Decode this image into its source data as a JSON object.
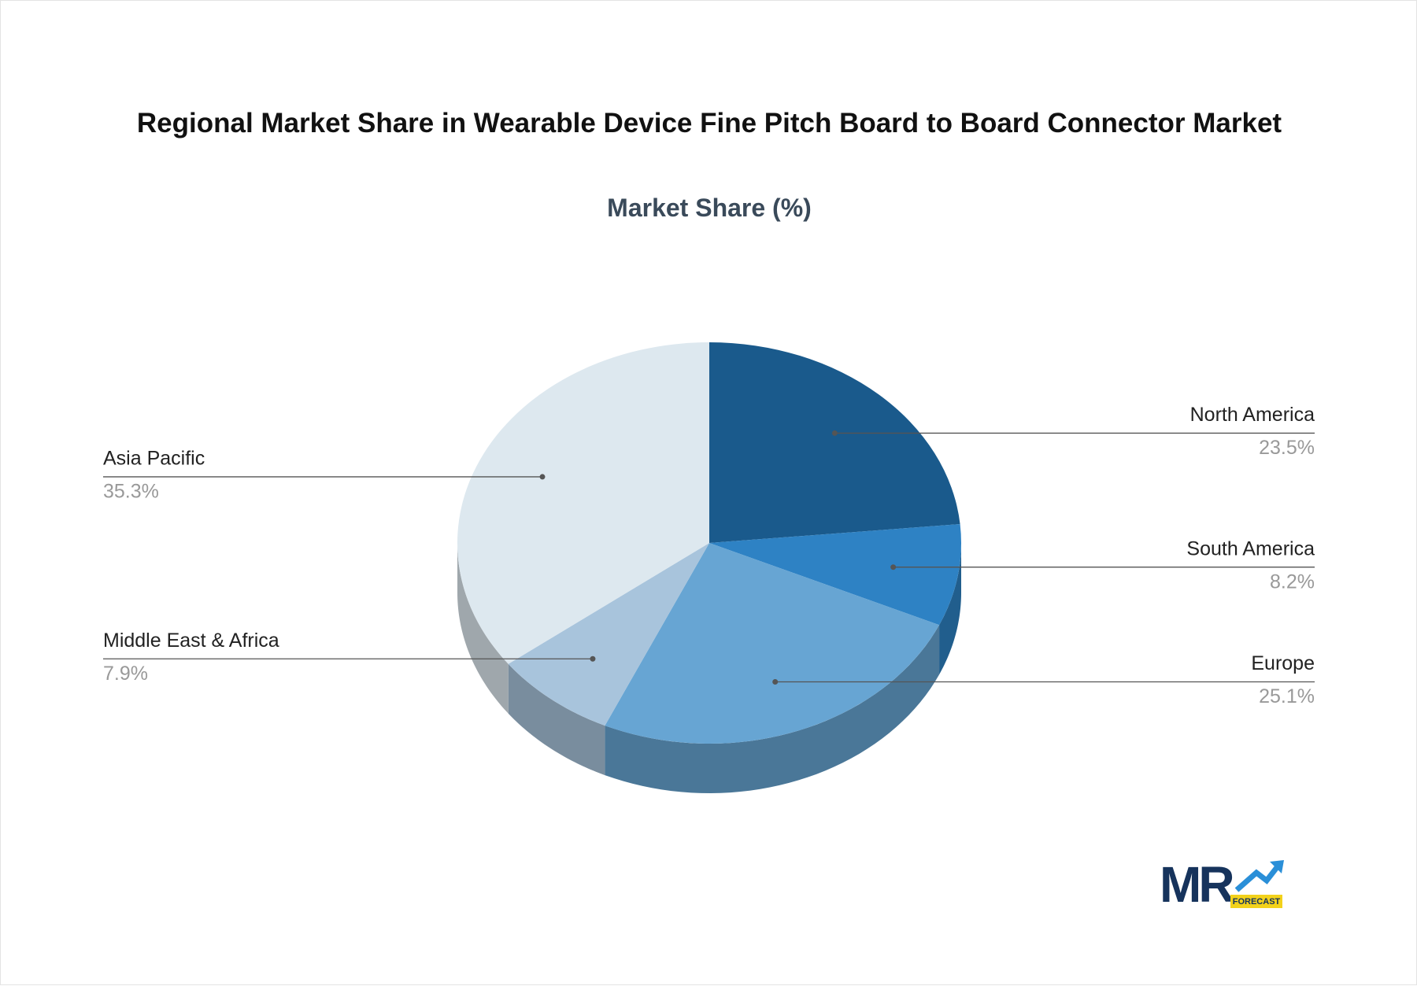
{
  "chart_data": {
    "type": "pie",
    "title": "Regional Market Share in Wearable Device Fine Pitch Board to Board Connector Market",
    "subtitle": "Market Share (%)",
    "categories": [
      "North America",
      "South America",
      "Europe",
      "Middle East & Africa",
      "Asia Pacific"
    ],
    "values": [
      23.5,
      8.2,
      25.1,
      7.9,
      35.3
    ],
    "value_labels": [
      "23.5%",
      "8.2%",
      "25.1%",
      "7.9%",
      "35.3%"
    ],
    "colors": [
      "#1a5a8c",
      "#2e82c4",
      "#67a5d3",
      "#a8c4dc",
      "#dde8ef"
    ]
  },
  "logo": {
    "text": "MR",
    "subtext": "FORECAST"
  }
}
